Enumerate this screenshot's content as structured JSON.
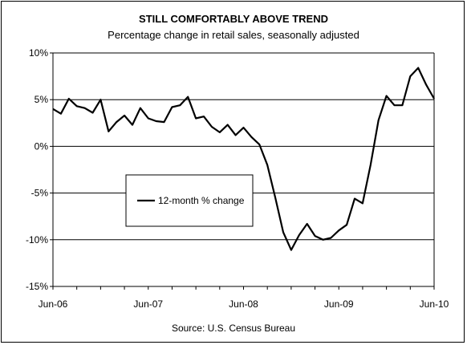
{
  "chart_data": {
    "type": "line",
    "title": "STILL COMFORTABLY ABOVE TREND",
    "subtitle": "Percentage change in retail sales, seasonally adjusted",
    "source": "Source: U.S. Census Bureau",
    "ylim": [
      -15,
      10
    ],
    "yticks": [
      10,
      5,
      0,
      -5,
      -10,
      -15
    ],
    "ytick_labels": [
      "10%",
      "5%",
      "0%",
      "-5%",
      "-10%",
      "-15%"
    ],
    "xtick_labels": [
      "Jun-06",
      "Jun-07",
      "Jun-08",
      "Jun-09",
      "Jun-10"
    ],
    "x_start": "Jun-06",
    "x_end": "Jun-10",
    "grid": "horizontal",
    "legend_position": "center-left",
    "series": [
      {
        "name": "12-month % change",
        "color": "#000000",
        "values": [
          4.0,
          3.5,
          5.1,
          4.3,
          4.1,
          3.6,
          5.0,
          1.6,
          2.6,
          3.3,
          2.3,
          4.1,
          3.0,
          2.7,
          2.6,
          4.2,
          4.4,
          5.3,
          3.0,
          3.2,
          2.1,
          1.5,
          2.3,
          1.2,
          2.0,
          1.0,
          0.2,
          -2.0,
          -5.5,
          -9.2,
          -11.1,
          -9.5,
          -8.3,
          -9.6,
          -10.0,
          -9.8,
          -9.0,
          -8.4,
          -5.6,
          -6.1,
          -2.0,
          2.8,
          5.4,
          4.4,
          4.4,
          7.5,
          8.4,
          6.6,
          5.1
        ]
      }
    ]
  }
}
